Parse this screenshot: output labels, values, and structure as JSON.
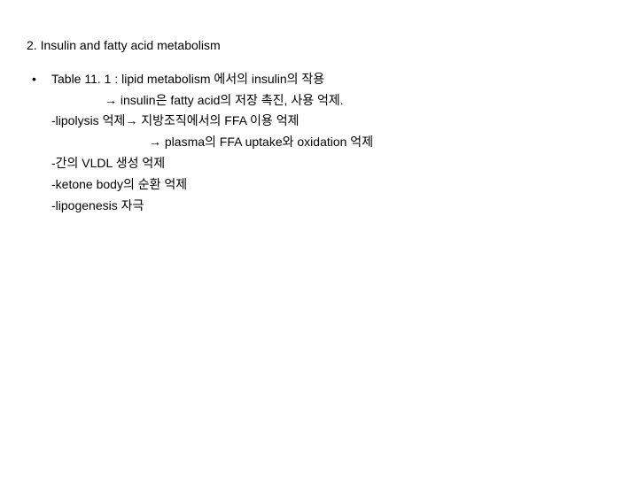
{
  "heading": "2. Insulin and fatty acid metabolism",
  "bullet": "•",
  "lines": {
    "l1": "Table 11. 1 : lipid metabolism 에서의 insulin의 작용",
    "l2": "→ insulin은 fatty acid의 저장 촉진, 사용 억제.",
    "l3": "-lipolysis 억제→ 지방조직에서의 FFA 이용 억제",
    "l4": "→ plasma의 FFA uptake와 oxidation 억제",
    "l5": "-간의 VLDL 생성 억제",
    "l6": "-ketone body의 순환 억제",
    "l7": "-lipogenesis 자극"
  },
  "style": {
    "font_size_pt": 14,
    "text_color": "#000000",
    "background_color": "#ffffff",
    "line_height": 1.7
  }
}
